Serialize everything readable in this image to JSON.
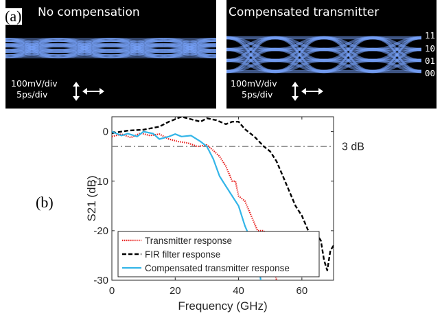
{
  "panel_labels": {
    "a": "(a)",
    "b": "(b)"
  },
  "eye_left": {
    "title": "No compensation",
    "vscale": "100mV/div",
    "hscale": "5ps/div"
  },
  "eye_right": {
    "title": "Compensated transmitter",
    "vscale": "100mV/div",
    "hscale": "5ps/div",
    "levels": [
      "11",
      "10",
      "01",
      "00"
    ]
  },
  "colors": {
    "eye_trace": "#7aa6ff",
    "transmitter": "#e8201e",
    "fir": "#000000",
    "compensated": "#33b5e8",
    "threshold": "#7f7f7f"
  },
  "chart_data": {
    "type": "line",
    "xlabel": "Frequency (GHz)",
    "ylabel": "S21 (dB)",
    "xlim": [
      0,
      70
    ],
    "ylim": [
      -30,
      3
    ],
    "xticks": [
      0,
      20,
      40,
      60
    ],
    "yticks": [
      0,
      -10,
      -20,
      -30
    ],
    "grid": false,
    "legend_position": "bottom-left",
    "annotation": {
      "text": "3 dB",
      "y": -3
    },
    "series": [
      {
        "name": "Transmitter response",
        "style": "dotted",
        "x": [
          0,
          3,
          6,
          9,
          12,
          15,
          18,
          21,
          24,
          27,
          30,
          32,
          34,
          36,
          38,
          39,
          40,
          42,
          44,
          46,
          48,
          50,
          52
        ],
        "y": [
          -1,
          -0.5,
          -1.2,
          -0.3,
          -0.8,
          -0.5,
          -1.5,
          -2,
          -2.3,
          -3,
          -2.7,
          -3.8,
          -5,
          -7,
          -10,
          -10,
          -13,
          -14,
          -17,
          -20,
          -20,
          -23,
          -30
        ]
      },
      {
        "name": "FIR filter response",
        "style": "dashed",
        "x": [
          0,
          5,
          10,
          15,
          18,
          20,
          22,
          25,
          28,
          30,
          33,
          36,
          38,
          40,
          42,
          45,
          48,
          50,
          52,
          54,
          56,
          58,
          60,
          62,
          64,
          65,
          66,
          67,
          68,
          69,
          70
        ],
        "y": [
          -0.3,
          0.2,
          0.4,
          1,
          2,
          2.5,
          3,
          2.5,
          2,
          2.7,
          2.3,
          1.5,
          2,
          2,
          0.5,
          -1,
          -3,
          -4,
          -6,
          -9,
          -12,
          -15,
          -17,
          -20,
          -22,
          -21,
          -22,
          -26,
          -28,
          -24,
          -23
        ]
      },
      {
        "name": "Compensated transmitter response",
        "style": "solid",
        "x": [
          0,
          3,
          5,
          8,
          10,
          13,
          15,
          18,
          20,
          22,
          25,
          28,
          30,
          32,
          34,
          36,
          38,
          40,
          42,
          44,
          46,
          47
        ],
        "y": [
          0,
          -0.8,
          -0.4,
          -1,
          0,
          -0.4,
          -1.5,
          -1,
          -0.5,
          -1,
          -0.8,
          -2,
          -3,
          -5.5,
          -9,
          -11,
          -13,
          -15,
          -19,
          -22,
          -25,
          -30
        ]
      }
    ]
  }
}
